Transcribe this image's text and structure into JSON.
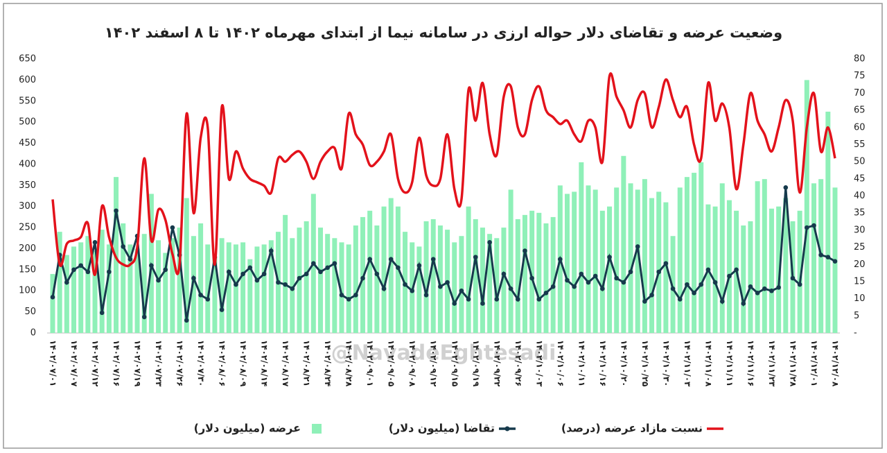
{
  "chart_data": {
    "type": "combo",
    "title": "وضعیت عرضه و تقاضای دلار حواله ارزی در سامانه نیما از ابتدای مهرماه ۱۴۰۲ تا ۸ اسفند ۱۴۰۲",
    "watermark": "@NavadeEghtesadi",
    "categories": [
      "۱۴۰۲/۰۷/۰۱",
      null,
      null,
      "۱۴۰۲/۰۷/۰۷",
      null,
      null,
      "۱۴۰۲/۰۷/۱۲",
      null,
      null,
      "۱۴۰۲/۰۷/۱۶",
      null,
      null,
      "۱۴۰۲/۰۷/۱۹",
      null,
      null,
      "۱۴۰۲/۰۷/۲۳",
      null,
      null,
      "۱۴۰۲/۰۷/۲۶",
      null,
      null,
      "۱۴۰۲/۰۷/۳۰",
      null,
      null,
      "۱۴۰۲/۰۸/۰۶",
      null,
      null,
      "۱۴۰۲/۰۸/۰۹",
      null,
      null,
      "۱۴۰۲/۰۸/۱۴",
      null,
      null,
      "۱۴۰۲/۰۸/۱۷",
      null,
      null,
      "۱۴۰۲/۰۸/۲۱",
      null,
      null,
      "۱۴۰۲/۰۸/۲۴",
      null,
      null,
      "۱۴۰۲/۰۸/۲۸",
      null,
      null,
      "۱۴۰۲/۰۹/۰۱",
      null,
      null,
      "۱۴۰۲/۰۹/۰۵",
      null,
      null,
      "۱۴۰۲/۰۹/۰۸",
      null,
      null,
      "۱۴۰۲/۰۹/۱۲",
      null,
      null,
      "۱۴۰۲/۰۹/۱۵",
      null,
      null,
      "۱۴۰۲/۰۹/۱۹",
      null,
      null,
      "۱۴۰۲/۰۹/۲۲",
      null,
      null,
      "۱۴۰۲/۰۹/۲۶",
      null,
      null,
      "۱۴۰۲/۱۰/۰۳",
      null,
      null,
      "۱۴۰۲/۱۰/۰۶",
      null,
      null,
      "۱۴۰۲/۱۰/۱۱",
      null,
      null,
      "۱۴۰۲/۱۰/۱۶",
      null,
      null,
      "۱۴۰۲/۱۰/۲۰",
      null,
      null,
      "۱۴۰۲/۱۰/۲۵",
      null,
      null,
      "۱۴۰۲/۱۰/۳۰",
      null,
      null,
      "۱۴۰۲/۱۱/۰۳",
      null,
      null,
      "۱۴۰۲/۱۱/۰۸",
      null,
      null,
      "۱۴۰۲/۱۱/۱۱",
      null,
      null,
      "۱۴۰۲/۱۱/۱۶",
      null,
      null,
      "۱۴۰۲/۱۱/۲۳",
      null,
      null,
      "۱۴۰۲/۱۱/۲۸",
      null,
      null,
      "۱۴۰۲/۱۲/۰۱",
      null,
      null,
      "۱۴۰۲/۱۲/۰۸"
    ],
    "series": [
      {
        "name": "عرضه (میلیون دلار)",
        "type": "bar",
        "axis": "y",
        "color": "#8ff0b8",
        "values": [
          140,
          240,
          185,
          205,
          215,
          230,
          195,
          245,
          210,
          370,
          260,
          210,
          200,
          235,
          330,
          220,
          190,
          225,
          250,
          320,
          230,
          260,
          210,
          180,
          225,
          215,
          210,
          215,
          175,
          205,
          210,
          220,
          240,
          280,
          225,
          250,
          265,
          330,
          250,
          235,
          225,
          215,
          210,
          255,
          275,
          290,
          255,
          300,
          320,
          300,
          240,
          215,
          205,
          265,
          270,
          255,
          245,
          215,
          230,
          300,
          270,
          250,
          235,
          225,
          250,
          340,
          270,
          280,
          290,
          285,
          260,
          275,
          350,
          330,
          335,
          405,
          350,
          340,
          290,
          300,
          345,
          420,
          355,
          340,
          365,
          320,
          335,
          310,
          230,
          345,
          370,
          380,
          405,
          305,
          300,
          355,
          315,
          290,
          255,
          265,
          360,
          365,
          295,
          300,
          320,
          265,
          290,
          600,
          355,
          365,
          525,
          345
        ]
      },
      {
        "name": "تقاضا (میلیون دلار)",
        "type": "line",
        "axis": "y",
        "color": "#163a4c",
        "values": [
          85,
          185,
          120,
          150,
          160,
          145,
          215,
          48,
          145,
          290,
          205,
          175,
          230,
          38,
          160,
          125,
          150,
          250,
          185,
          30,
          130,
          90,
          80,
          180,
          55,
          145,
          115,
          140,
          155,
          125,
          140,
          195,
          120,
          115,
          105,
          130,
          140,
          165,
          145,
          155,
          165,
          90,
          80,
          90,
          130,
          175,
          140,
          105,
          175,
          155,
          115,
          100,
          160,
          90,
          175,
          110,
          120,
          70,
          100,
          80,
          180,
          70,
          215,
          80,
          140,
          105,
          80,
          195,
          130,
          80,
          95,
          110,
          175,
          125,
          110,
          140,
          120,
          135,
          105,
          180,
          130,
          120,
          145,
          205,
          75,
          90,
          145,
          165,
          105,
          80,
          115,
          95,
          115,
          150,
          120,
          75,
          135,
          150,
          70,
          110,
          95,
          105,
          100,
          108,
          345,
          130,
          115,
          250,
          255,
          185,
          180,
          170
        ]
      },
      {
        "name": "نسبت مازاد عرضه (درصد)",
        "type": "smooth",
        "axis": "y2",
        "color": "#e3121b",
        "values": [
          39,
          20,
          26,
          27,
          28,
          32,
          17,
          37,
          28,
          22,
          20,
          20,
          25,
          51,
          27,
          36,
          33,
          23,
          20,
          64,
          35,
          57,
          60,
          20,
          66,
          45,
          53,
          48,
          45,
          44,
          43,
          41,
          51,
          50,
          52,
          53,
          50,
          45,
          50,
          53,
          54,
          48,
          64,
          58,
          55,
          49,
          50,
          53,
          58,
          45,
          41,
          44,
          57,
          46,
          43,
          45,
          58,
          42,
          39,
          71,
          62,
          73,
          58,
          52,
          69,
          72,
          60,
          58,
          68,
          72,
          65,
          63,
          61,
          62,
          58,
          56,
          62,
          60,
          50,
          75,
          69,
          65,
          60,
          68,
          70,
          60,
          66,
          74,
          68,
          63,
          66,
          55,
          51,
          73,
          62,
          67,
          60,
          42,
          55,
          70,
          62,
          58,
          53,
          60,
          68,
          62,
          41,
          60,
          70,
          53,
          60,
          51
        ]
      }
    ],
    "ylim": [
      0,
      650
    ],
    "yticks": [
      0,
      50,
      100,
      150,
      200,
      250,
      300,
      350,
      400,
      450,
      500,
      550,
      600,
      650
    ],
    "y2lim": [
      0,
      80
    ],
    "y2ticks": [
      {
        "value": 0,
        "label": "-"
      },
      5,
      10,
      15,
      20,
      25,
      30,
      35,
      40,
      45,
      50,
      55,
      60,
      65,
      70,
      75,
      80
    ]
  }
}
